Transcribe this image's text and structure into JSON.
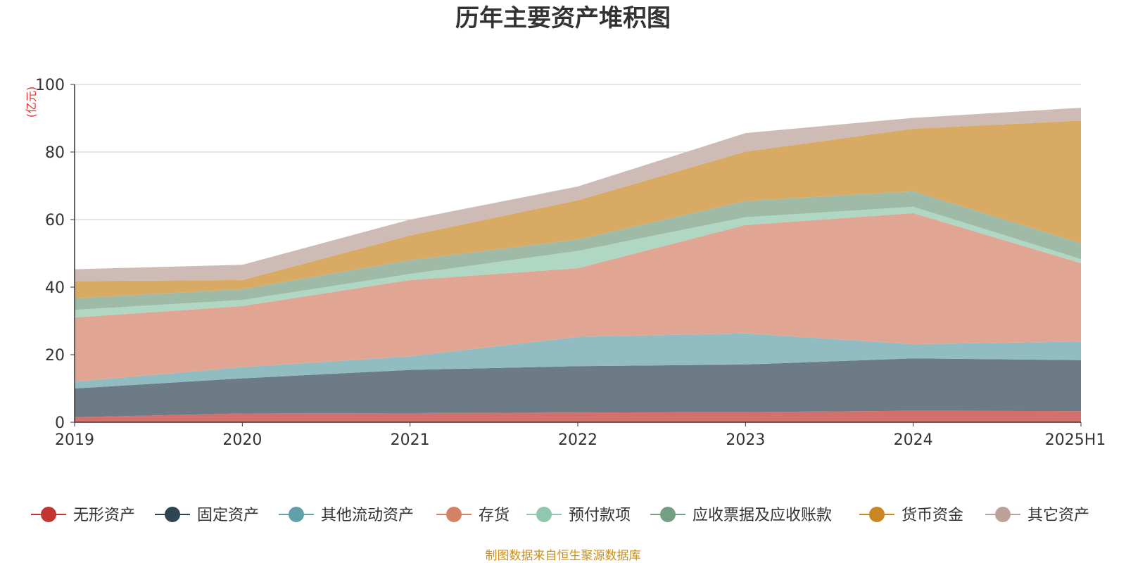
{
  "chart_data": {
    "type": "area",
    "title": "历年主要资产堆积图",
    "unit_label": "(亿元)",
    "source": "制图数据来自恒生聚源数据库",
    "categories": [
      "2019",
      "2020",
      "2021",
      "2022",
      "2023",
      "2024",
      "2025H1"
    ],
    "ylim": [
      0,
      100
    ],
    "yticks": [
      "0",
      "20",
      "40",
      "60",
      "80",
      "100"
    ],
    "grid": true,
    "legend_position": "bottom",
    "stacked": true,
    "series": [
      {
        "name": "无形资产",
        "color": "#c23531",
        "fill": "#d2706c",
        "values": [
          1.5,
          2.6,
          2.7,
          2.9,
          3.0,
          3.4,
          3.3
        ]
      },
      {
        "name": "固定资产",
        "color": "#2f4554",
        "fill": "#6d7b86",
        "values": [
          8.5,
          10.4,
          12.8,
          13.7,
          14.1,
          15.5,
          15.1
        ]
      },
      {
        "name": "其他流动资产",
        "color": "#61a0a8",
        "fill": "#90bcc2",
        "values": [
          2.0,
          3.3,
          4.0,
          8.7,
          9.2,
          4.2,
          5.5
        ]
      },
      {
        "name": "存货",
        "color": "#d48265",
        "fill": "#e0a693",
        "values": [
          19.0,
          18.1,
          22.6,
          20.3,
          32.1,
          38.8,
          23.2
        ]
      },
      {
        "name": "预付款项",
        "color": "#91c7ae",
        "fill": "#b0d6c4",
        "values": [
          2.3,
          1.8,
          1.8,
          5.1,
          2.3,
          1.9,
          1.2
        ]
      },
      {
        "name": "应收票据及应收账款",
        "color": "#749f83",
        "fill": "#9fbaa7",
        "values": [
          3.4,
          3.2,
          4.1,
          3.4,
          4.8,
          4.6,
          4.7
        ]
      },
      {
        "name": "货币资金",
        "color": "#ca8622",
        "fill": "#d8aa63",
        "values": [
          5.1,
          2.7,
          7.3,
          11.6,
          14.6,
          18.5,
          36.3
        ]
      },
      {
        "name": "其它资产",
        "color": "#bda29a",
        "fill": "#cfbbb5",
        "values": [
          3.5,
          4.5,
          4.7,
          4.1,
          5.5,
          3.2,
          3.8
        ]
      }
    ]
  }
}
